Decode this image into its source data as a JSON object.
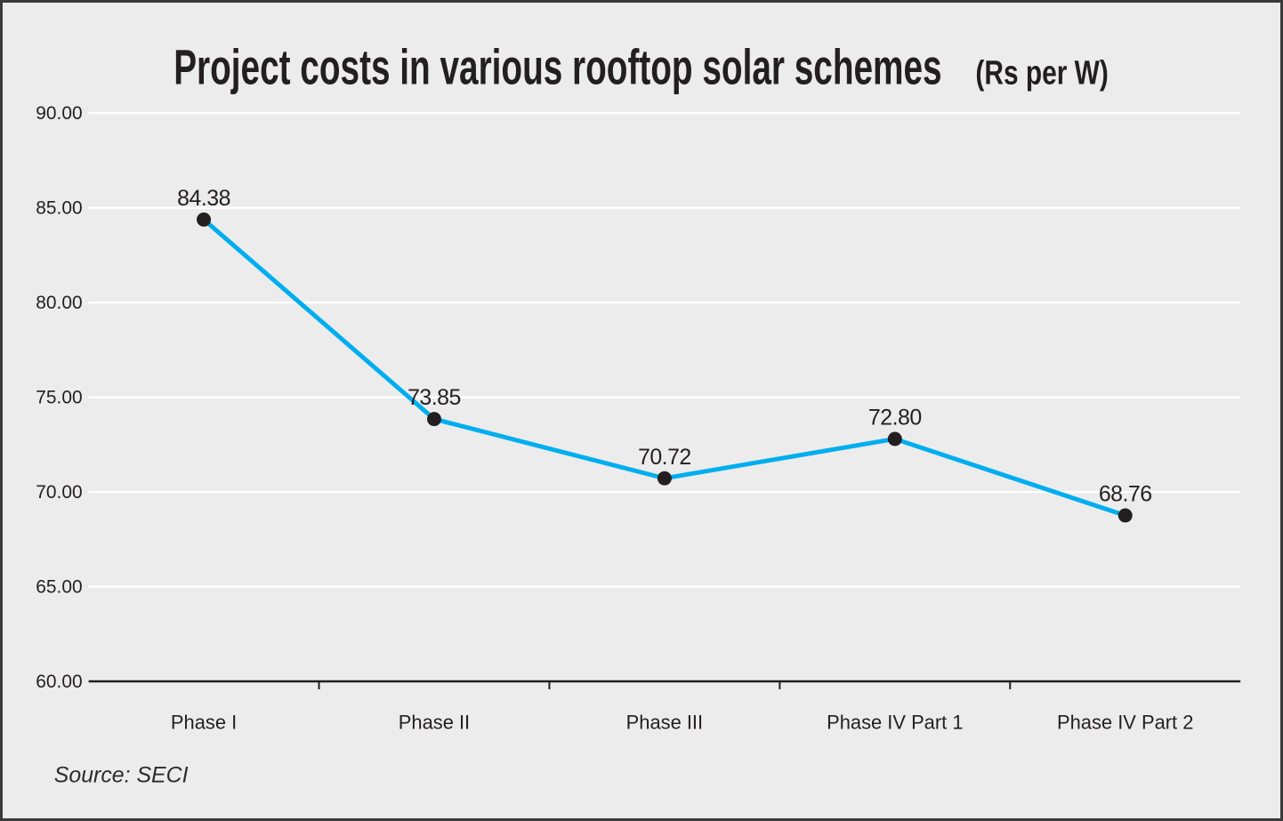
{
  "chart_data": {
    "type": "line",
    "title": "Project costs in various rooftop solar schemes",
    "title_unit": "(Rs per W)",
    "categories": [
      "Phase I",
      "Phase II",
      "Phase III",
      "Phase IV Part 1",
      "Phase IV Part 2"
    ],
    "values": [
      84.38,
      73.85,
      70.72,
      72.8,
      68.76
    ],
    "value_labels": [
      "84.38",
      "73.85",
      "70.72",
      "72.80",
      "68.76"
    ],
    "xlabel": "",
    "ylabel": "",
    "ylim": [
      60,
      90
    ],
    "ytick_step": 5,
    "ytick_labels": [
      "60.00",
      "65.00",
      "70.00",
      "75.00",
      "80.00",
      "85.00",
      "90.00"
    ],
    "grid": true,
    "grid_orientation": "horizontal",
    "legend": false,
    "source": "Source: SECI"
  },
  "colors": {
    "background": "#ECECEC",
    "line": "#00AEEF",
    "marker": "#231F20",
    "gridline": "#FFFFFF",
    "axis": "#231F20",
    "text": "#231F20"
  }
}
